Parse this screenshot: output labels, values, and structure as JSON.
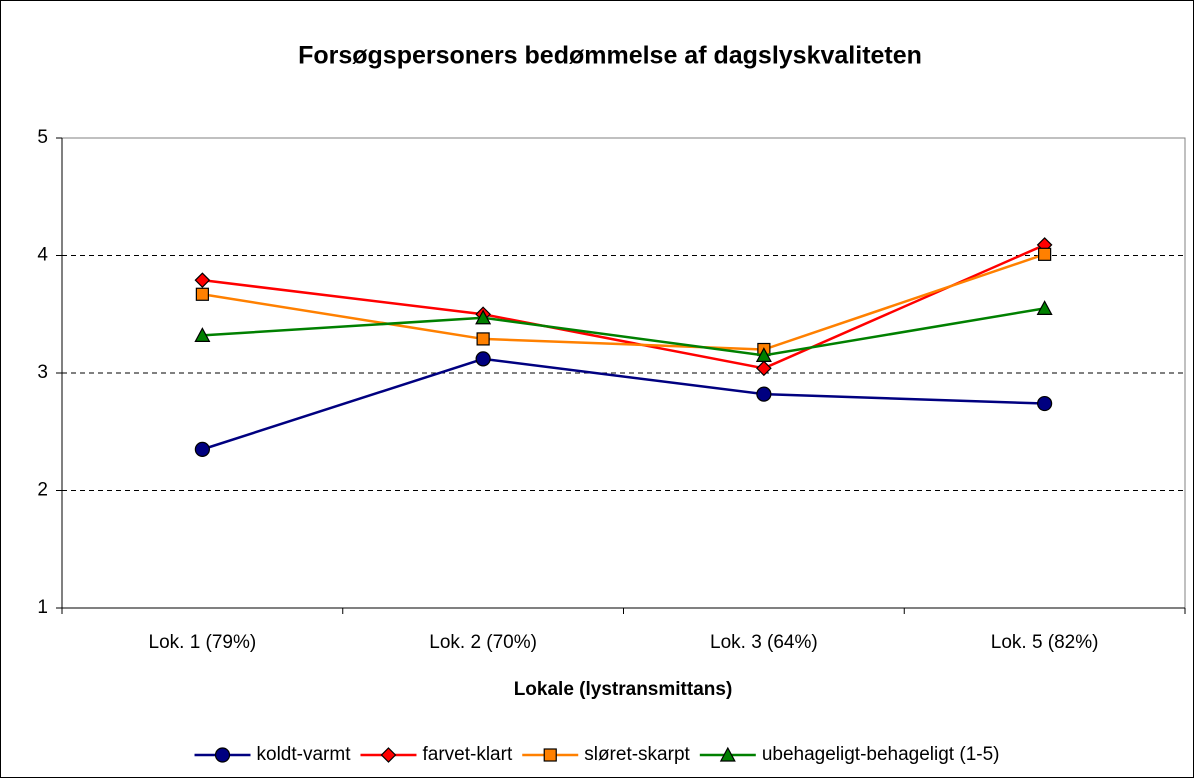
{
  "chart_data": {
    "type": "line",
    "title": "Forsøgspersoners bedømmelse af dagslyskvaliteten",
    "x_label": "Lokale (lystransmittans)",
    "categories": [
      "Lok. 1 (79%)",
      "Lok. 2 (70%)",
      "Lok. 3 (64%)",
      "Lok. 5 (82%)"
    ],
    "series": [
      {
        "name": "koldt-varmt",
        "color": "#000080",
        "marker": "circle",
        "values": [
          2.35,
          3.12,
          2.82,
          2.74
        ]
      },
      {
        "name": "farvet-klart",
        "color": "#ff0000",
        "marker": "diamond",
        "values": [
          3.79,
          3.5,
          3.04,
          4.09
        ]
      },
      {
        "name": "sløret-skarpt",
        "color": "#ff8000",
        "marker": "square",
        "values": [
          3.67,
          3.29,
          3.2,
          4.01
        ]
      },
      {
        "name": "ubehageligt-behageligt (1-5)",
        "color": "#008000",
        "marker": "triangle",
        "values": [
          3.32,
          3.47,
          3.15,
          3.55
        ]
      }
    ],
    "ylim": [
      1,
      5
    ],
    "yticks": [
      1,
      2,
      3,
      4,
      5
    ],
    "grid": true,
    "legend": "bottom"
  }
}
